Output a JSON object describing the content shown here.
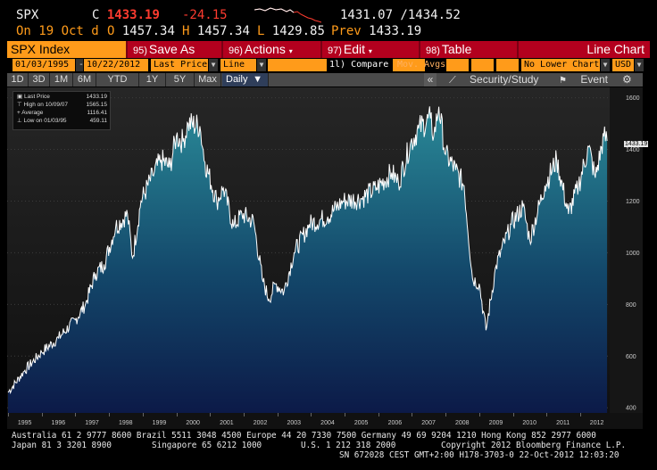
{
  "header": {
    "ticker": "SPX",
    "price_prefix": "C",
    "price": "1433.19",
    "change": "-24.15",
    "range": "1431.07 /1434.52",
    "date_line": "On 19 Oct d",
    "open_label": "O",
    "open": "1457.34",
    "high_label": "H",
    "high": "1457.34",
    "low_label": "L",
    "low": "1429.85",
    "prev_label": "Prev",
    "prev": "1433.19"
  },
  "menubar": {
    "index_label": "SPX Index",
    "items": [
      {
        "num": "95)",
        "label": "Save As"
      },
      {
        "num": "96)",
        "label": "Actions"
      },
      {
        "num": "97)",
        "label": "Edit"
      },
      {
        "num": "98)",
        "label": "Table"
      }
    ],
    "view_title": "Line Chart"
  },
  "controls": {
    "start_date": "01/03/1995",
    "sep": "-",
    "end_date": "10/22/2012",
    "field": "Last Price",
    "chart_type": "Line",
    "compare": "1l) Compare",
    "mov_avgs": "Mov. Avgs",
    "lower_chart": "No Lower Chart",
    "currency": "USD"
  },
  "toolbar": {
    "periods": [
      "1D",
      "3D",
      "1M",
      "6M",
      "YTD",
      "1Y",
      "5Y",
      "Max"
    ],
    "frequency": "Daily",
    "collapse": "«",
    "security_study": "Security/Study",
    "event": "Event"
  },
  "legend": [
    {
      "label": "Last Price",
      "value": "1433.19"
    },
    {
      "label": "High on 10/09/07",
      "value": "1565.15"
    },
    {
      "label": "Average",
      "value": "1116.41"
    },
    {
      "label": "Low on 01/03/95",
      "value": "459.11"
    }
  ],
  "chart_data": {
    "type": "area",
    "x_unit": "year",
    "x": [
      1995.0,
      1995.5,
      1996.0,
      1996.5,
      1997.0,
      1997.3,
      1997.6,
      1997.85,
      1998.2,
      1998.55,
      1998.7,
      1998.95,
      1999.3,
      1999.55,
      1999.8,
      2000.0,
      2000.2,
      2000.35,
      2000.7,
      2000.85,
      2001.2,
      2001.4,
      2001.7,
      2001.95,
      2002.3,
      2002.55,
      2002.75,
      2002.95,
      2003.2,
      2003.5,
      2003.95,
      2004.5,
      2004.95,
      2005.5,
      2005.95,
      2006.4,
      2006.6,
      2006.95,
      2007.2,
      2007.55,
      2007.65,
      2007.8,
      2008.0,
      2008.3,
      2008.55,
      2008.8,
      2009.0,
      2009.2,
      2009.5,
      2009.95,
      2010.3,
      2010.5,
      2010.95,
      2011.3,
      2011.65,
      2011.95,
      2012.25,
      2012.45,
      2012.7,
      2012.8
    ],
    "y": [
      459,
      545,
      615,
      670,
      740,
      800,
      920,
      955,
      1100,
      1150,
      980,
      1200,
      1300,
      1360,
      1330,
      1450,
      1430,
      1500,
      1490,
      1350,
      1200,
      1250,
      1100,
      1150,
      1120,
      900,
      820,
      880,
      850,
      1000,
      1110,
      1140,
      1200,
      1210,
      1250,
      1310,
      1270,
      1420,
      1480,
      1520,
      1450,
      1565,
      1380,
      1320,
      1260,
      900,
      880,
      700,
      950,
      1110,
      1180,
      1050,
      1260,
      1360,
      1150,
      1260,
      1410,
      1290,
      1450,
      1433
    ],
    "y_ticks": [
      400,
      600,
      800,
      1000,
      1200,
      1400,
      1600
    ],
    "ylim": [
      380,
      1640
    ],
    "x_ticks": [
      "1995",
      "1996",
      "1997",
      "1998",
      "1999",
      "2000",
      "2001",
      "2002",
      "2003",
      "2004",
      "2005",
      "2006",
      "2007",
      "2008",
      "2009",
      "2010",
      "2011",
      "2012"
    ],
    "last_value_label": "1433.19",
    "colors": {
      "fill_top": "#2a8a98",
      "fill_bottom": "#0c1a48",
      "line": "#ffffff",
      "background": "#1c1c1c"
    }
  },
  "footer": {
    "line1": "Australia 61 2 9777 8600 Brazil 5511 3048 4500 Europe 44 20 7330 7500 Germany 49 69 9204 1210 Hong Kong 852 2977 6000",
    "line2a": "Japan 81 3 3201 8900",
    "line2b": "Singapore 65 6212 1000",
    "line2c": "U.S. 1 212 318 2000",
    "line2d": "Copyright 2012 Bloomberg Finance L.P.",
    "line3": "SN 672028 CEST GMT+2:00 H178-3703-0 22-Oct-2012 12:03:20"
  }
}
